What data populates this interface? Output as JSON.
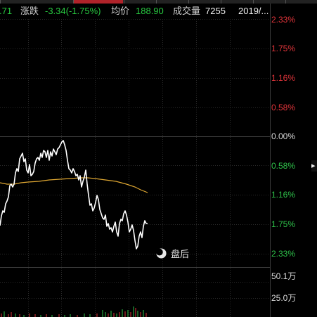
{
  "header": {
    "prev_value": ".71",
    "change_label": "涨跌",
    "change_value": "-3.34(-1.75%)",
    "avg_label": "均价",
    "avg_value": "188.90",
    "volume_label": "成交量",
    "volume_value": "7255",
    "date": "2019/..."
  },
  "right_axis": {
    "pct_labels": [
      "2.33%",
      "1.75%",
      "1.16%",
      "0.58%",
      "0.00%",
      "0.58%",
      "1.16%",
      "1.75%",
      "2.33%"
    ],
    "volume_labels": [
      "50.1万",
      "25.0万"
    ]
  },
  "after_hours": {
    "label": "盘后",
    "icon": "moon-icon"
  },
  "expand_arrow": {
    "glyph": "▸",
    "icon": "chevron-right-icon"
  },
  "colors": {
    "background": "#000000",
    "up": "#e0343a",
    "down": "#2ec24a",
    "price_line": "#ffffff",
    "avg_line": "#e0a832",
    "grid": "#2a2a2a",
    "active_tab": "#b0232a"
  }
}
